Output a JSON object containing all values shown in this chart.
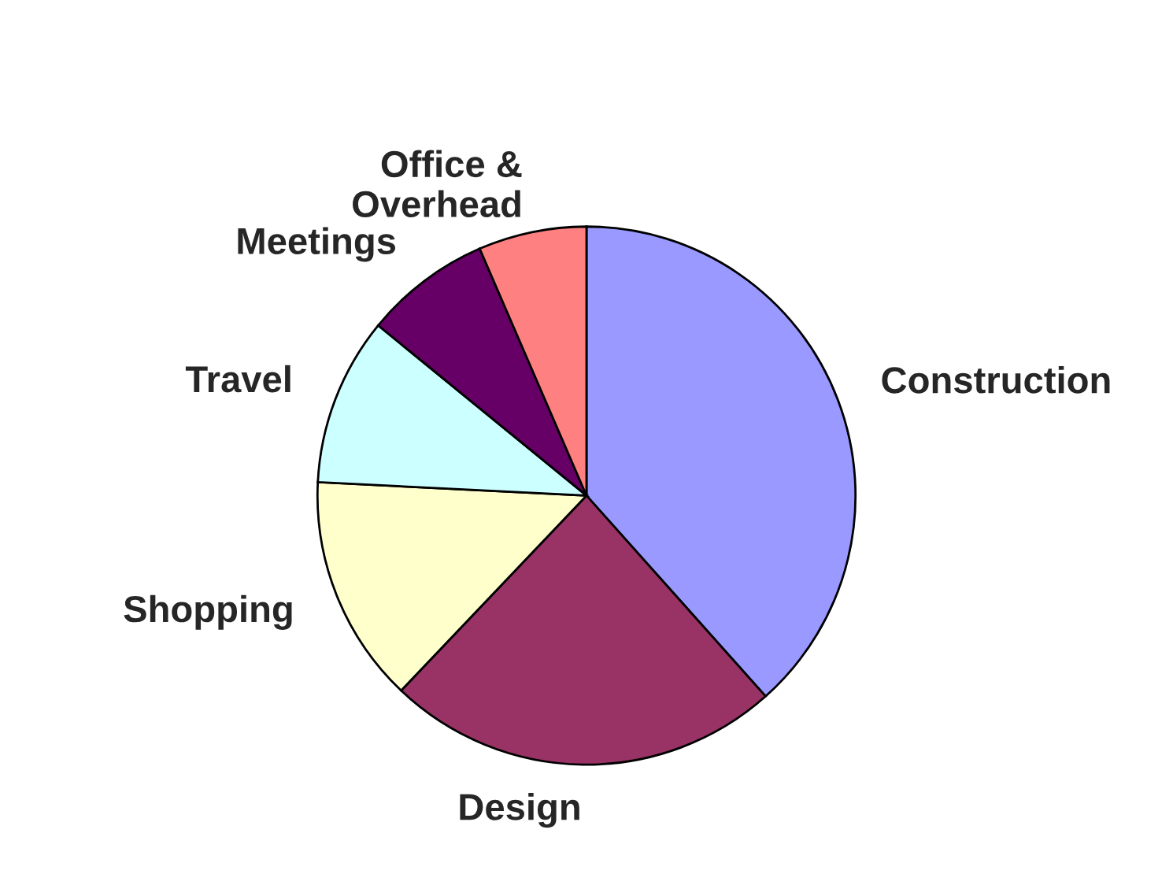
{
  "chart_data": {
    "type": "pie",
    "categories": [
      "Construction",
      "Design",
      "Shopping",
      "Travel",
      "Meetings",
      "Office &\nOverhead"
    ],
    "values": [
      38.4,
      23.7,
      13.7,
      10.1,
      7.6,
      6.5
    ],
    "colors": [
      "#9999ff",
      "#993366",
      "#ffffcc",
      "#ccffff",
      "#660066",
      "#ff8080"
    ],
    "legend": false
  }
}
